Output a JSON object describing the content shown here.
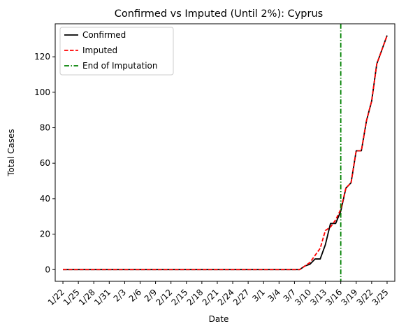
{
  "chart_data": {
    "type": "line",
    "title": "Confirmed vs Imputed (Until 2%): Cyprus",
    "xlabel": "Date",
    "ylabel": "Total Cases",
    "xlim": [
      -1.5,
      64.5
    ],
    "ylim": [
      -6.6,
      138.6
    ],
    "yticks": [
      0,
      20,
      40,
      60,
      80,
      100,
      120
    ],
    "grid": false,
    "legend_position": "top-left",
    "x": [
      "1/22",
      "1/23",
      "1/24",
      "1/25",
      "1/26",
      "1/27",
      "1/28",
      "1/29",
      "1/30",
      "1/31",
      "2/1",
      "2/2",
      "2/3",
      "2/4",
      "2/5",
      "2/6",
      "2/7",
      "2/8",
      "2/9",
      "2/10",
      "2/11",
      "2/12",
      "2/13",
      "2/14",
      "2/15",
      "2/16",
      "2/17",
      "2/18",
      "2/19",
      "2/20",
      "2/21",
      "2/22",
      "2/23",
      "2/24",
      "2/25",
      "2/26",
      "2/27",
      "2/28",
      "2/29",
      "3/1",
      "3/2",
      "3/3",
      "3/4",
      "3/5",
      "3/6",
      "3/7",
      "3/8",
      "3/9",
      "3/10",
      "3/11",
      "3/12",
      "3/13",
      "3/14",
      "3/15",
      "3/16",
      "3/17",
      "3/18",
      "3/19",
      "3/20",
      "3/21",
      "3/22",
      "3/23",
      "3/24",
      "3/25"
    ],
    "xticks": [
      "1/22",
      "1/25",
      "1/28",
      "1/31",
      "2/3",
      "2/6",
      "2/9",
      "2/12",
      "2/15",
      "2/18",
      "2/21",
      "2/24",
      "2/27",
      "3/1",
      "3/4",
      "3/7",
      "3/10",
      "3/13",
      "3/16",
      "3/19",
      "3/22",
      "3/25"
    ],
    "series": [
      {
        "name": "Confirmed",
        "color": "#000000",
        "style": "solid",
        "values": [
          0,
          0,
          0,
          0,
          0,
          0,
          0,
          0,
          0,
          0,
          0,
          0,
          0,
          0,
          0,
          0,
          0,
          0,
          0,
          0,
          0,
          0,
          0,
          0,
          0,
          0,
          0,
          0,
          0,
          0,
          0,
          0,
          0,
          0,
          0,
          0,
          0,
          0,
          0,
          0,
          0,
          0,
          0,
          0,
          0,
          0,
          0,
          2,
          3,
          6,
          6,
          14,
          26,
          26,
          33,
          46,
          49,
          67,
          67,
          84,
          95,
          116,
          124,
          132
        ]
      },
      {
        "name": "Imputed",
        "color": "#ff0000",
        "style": "dashed",
        "values": [
          0,
          0,
          0,
          0,
          0,
          0,
          0,
          0,
          0,
          0,
          0,
          0,
          0,
          0,
          0,
          0,
          0,
          0,
          0,
          0,
          0,
          0,
          0,
          0,
          0,
          0,
          0,
          0,
          0,
          0,
          0,
          0,
          0,
          0,
          0,
          0,
          0,
          0,
          0,
          0,
          0,
          0,
          0,
          0,
          0,
          0,
          0,
          2,
          4,
          8,
          12,
          22,
          24,
          28,
          34,
          46,
          49,
          67,
          67,
          84,
          95,
          116,
          124,
          132
        ]
      }
    ],
    "vline": {
      "name": "End of Imputation",
      "x": "3/16",
      "color": "#008000",
      "style": "dashdot"
    }
  }
}
